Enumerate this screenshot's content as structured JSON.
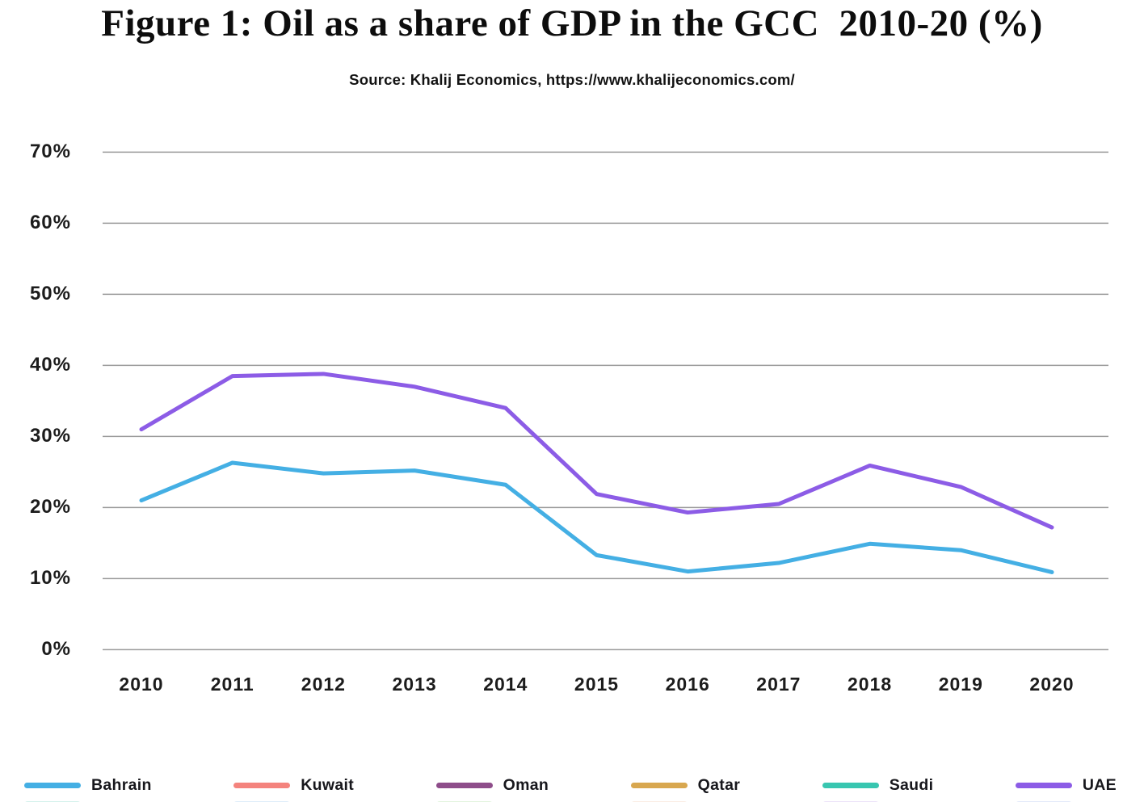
{
  "header": {
    "title": "Figure 1: Oil as a share of GDP in the GCC  2010-20 (%)",
    "source": "Source: Khalij Economics, https://www.khalijeconomics.com/"
  },
  "chart_data": {
    "type": "line",
    "title": "Figure 1: Oil as a share of GDP in the GCC 2010-20 (%)",
    "subtitle": "Source: Khalij Economics, https://www.khalijeconomics.com/",
    "categories": [
      "2010",
      "2011",
      "2012",
      "2013",
      "2014",
      "2015",
      "2016",
      "2017",
      "2018",
      "2019",
      "2020"
    ],
    "series": [
      {
        "name": "Bahrain",
        "color": "#44AFE4",
        "values": [
          21.0,
          26.3,
          24.8,
          25.2,
          23.2,
          13.3,
          11.0,
          12.2,
          14.9,
          14.0,
          10.9
        ]
      },
      {
        "name": "Kuwait",
        "color": "#F4837D",
        "values": []
      },
      {
        "name": "Oman",
        "color": "#8E4D8A",
        "values": []
      },
      {
        "name": "Qatar",
        "color": "#D8A74F",
        "values": []
      },
      {
        "name": "Saudi",
        "color": "#38C6B0",
        "values": []
      },
      {
        "name": "UAE",
        "color": "#8C5CE6",
        "values": [
          31.0,
          38.5,
          38.8,
          37.0,
          34.0,
          21.9,
          19.3,
          20.5,
          25.9,
          22.9,
          17.2
        ]
      }
    ],
    "visible_series": [
      "Bahrain",
      "UAE"
    ],
    "y_ticks": [
      "0%",
      "10%",
      "20%",
      "30%",
      "40%",
      "50%",
      "60%",
      "70%"
    ],
    "ylim": [
      0,
      70
    ],
    "grid": true,
    "gridline_color": "#9a9a9a",
    "legend_position": "bottom",
    "legend_cutoff_row_colors": [
      "#9fe0d4",
      "#b5d8f2",
      "#c0e6b6",
      "#f6d6c4",
      "#d4c2ef",
      "#c0cef2"
    ]
  }
}
